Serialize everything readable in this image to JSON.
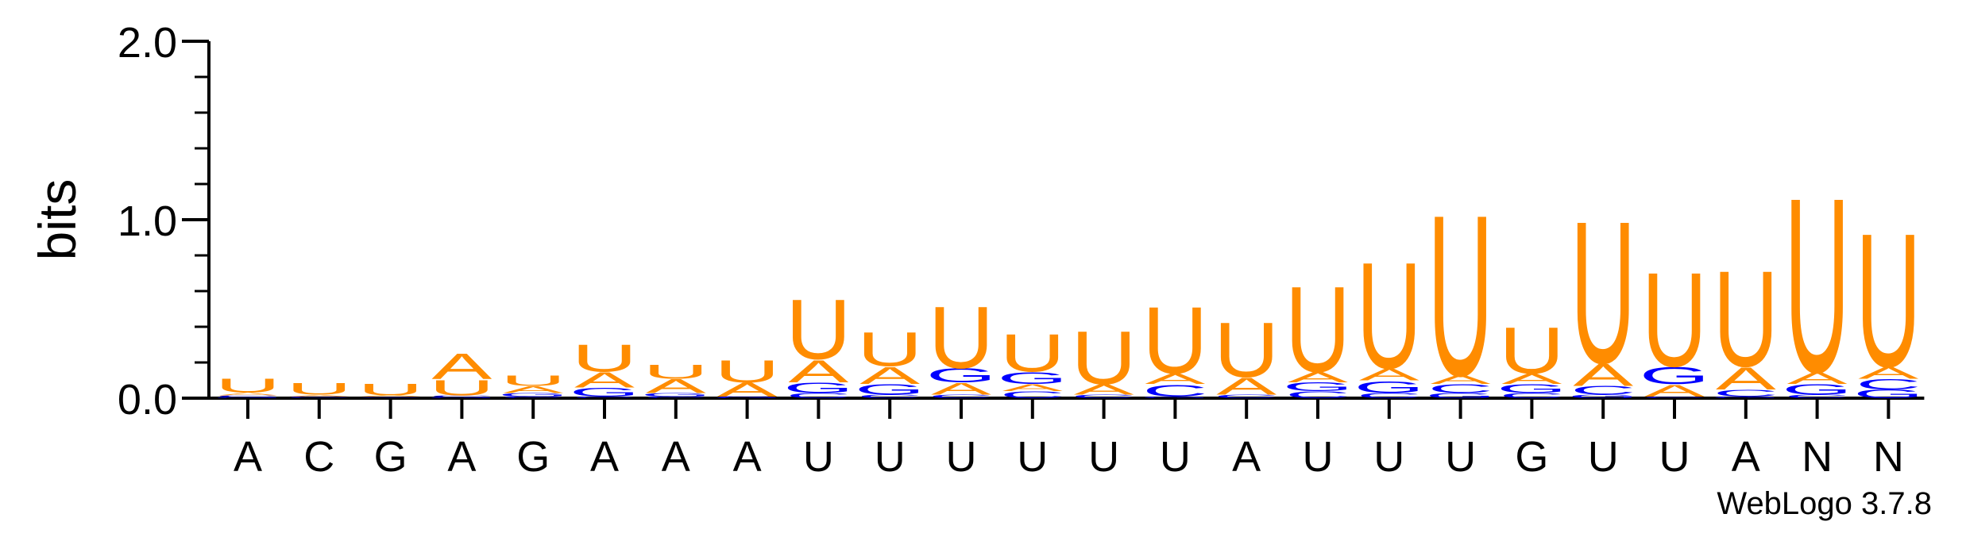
{
  "chart_data": {
    "type": "sequence-logo",
    "ylabel": "bits",
    "ylim": [
      0,
      2
    ],
    "yticks": [
      "0.0",
      "1.0",
      "2.0"
    ],
    "credit": "WebLogo 3.7.8",
    "colors": {
      "U": "#ff8c00",
      "A": "#ff8c00",
      "G": "#0000ff",
      "C": "#0000ff"
    },
    "positions": [
      {
        "label": "A",
        "stack": [
          {
            "l": "G",
            "h": 0.006
          },
          {
            "l": "C",
            "h": 0.01
          },
          {
            "l": "A",
            "h": 0.015
          },
          {
            "l": "U",
            "h": 0.08
          }
        ]
      },
      {
        "label": "C",
        "stack": [
          {
            "l": "G",
            "h": 0.004
          },
          {
            "l": "C",
            "h": 0.006
          },
          {
            "l": "A",
            "h": 0.01
          },
          {
            "l": "U",
            "h": 0.07
          }
        ]
      },
      {
        "label": "G",
        "stack": [
          {
            "l": "G",
            "h": 0.004
          },
          {
            "l": "C",
            "h": 0.004
          },
          {
            "l": "A",
            "h": 0.008
          },
          {
            "l": "U",
            "h": 0.07
          }
        ]
      },
      {
        "label": "A",
        "stack": [
          {
            "l": "G",
            "h": 0.006
          },
          {
            "l": "C",
            "h": 0.01
          },
          {
            "l": "U",
            "h": 0.09
          },
          {
            "l": "A",
            "h": 0.15
          }
        ]
      },
      {
        "label": "G",
        "stack": [
          {
            "l": "C",
            "h": 0.01
          },
          {
            "l": "G",
            "h": 0.02
          },
          {
            "l": "A",
            "h": 0.04
          },
          {
            "l": "U",
            "h": 0.06
          }
        ]
      },
      {
        "label": "A",
        "stack": [
          {
            "l": "C",
            "h": 0.01
          },
          {
            "l": "G",
            "h": 0.05
          },
          {
            "l": "A",
            "h": 0.09
          },
          {
            "l": "U",
            "h": 0.16
          }
        ]
      },
      {
        "label": "A",
        "stack": [
          {
            "l": "C",
            "h": 0.01
          },
          {
            "l": "G",
            "h": 0.02
          },
          {
            "l": "A",
            "h": 0.08
          },
          {
            "l": "U",
            "h": 0.08
          }
        ]
      },
      {
        "label": "A",
        "stack": [
          {
            "l": "G",
            "h": 0.005
          },
          {
            "l": "C",
            "h": 0.005
          },
          {
            "l": "A",
            "h": 0.08
          },
          {
            "l": "U",
            "h": 0.13
          }
        ]
      },
      {
        "label": "U",
        "stack": [
          {
            "l": "C",
            "h": 0.03
          },
          {
            "l": "G",
            "h": 0.06
          },
          {
            "l": "A",
            "h": 0.13
          },
          {
            "l": "U",
            "h": 0.35
          }
        ]
      },
      {
        "label": "U",
        "stack": [
          {
            "l": "C",
            "h": 0.02
          },
          {
            "l": "G",
            "h": 0.06
          },
          {
            "l": "A",
            "h": 0.1
          },
          {
            "l": "U",
            "h": 0.2
          }
        ]
      },
      {
        "label": "U",
        "stack": [
          {
            "l": "C",
            "h": 0.02
          },
          {
            "l": "A",
            "h": 0.07
          },
          {
            "l": "G",
            "h": 0.08
          },
          {
            "l": "U",
            "h": 0.36
          }
        ]
      },
      {
        "label": "U",
        "stack": [
          {
            "l": "C",
            "h": 0.04
          },
          {
            "l": "A",
            "h": 0.04
          },
          {
            "l": "G",
            "h": 0.07
          },
          {
            "l": "U",
            "h": 0.22
          }
        ]
      },
      {
        "label": "U",
        "stack": [
          {
            "l": "C",
            "h": 0.02
          },
          {
            "l": "A",
            "h": 0.06
          },
          {
            "l": "U",
            "h": 0.31
          }
        ]
      },
      {
        "label": "U",
        "stack": [
          {
            "l": "G",
            "h": 0.01
          },
          {
            "l": "C",
            "h": 0.07
          },
          {
            "l": "A",
            "h": 0.06
          },
          {
            "l": "U",
            "h": 0.39
          }
        ]
      },
      {
        "label": "A",
        "stack": [
          {
            "l": "C",
            "h": 0.02
          },
          {
            "l": "A",
            "h": 0.1
          },
          {
            "l": "U",
            "h": 0.32
          }
        ]
      },
      {
        "label": "U",
        "stack": [
          {
            "l": "C",
            "h": 0.04
          },
          {
            "l": "G",
            "h": 0.05
          },
          {
            "l": "A",
            "h": 0.06
          },
          {
            "l": "U",
            "h": 0.5
          }
        ]
      },
      {
        "label": "U",
        "stack": [
          {
            "l": "C",
            "h": 0.03
          },
          {
            "l": "G",
            "h": 0.07
          },
          {
            "l": "A",
            "h": 0.07
          },
          {
            "l": "U",
            "h": 0.62
          }
        ]
      },
      {
        "label": "U",
        "stack": [
          {
            "l": "G",
            "h": 0.03
          },
          {
            "l": "C",
            "h": 0.05
          },
          {
            "l": "A",
            "h": 0.05
          },
          {
            "l": "U",
            "h": 0.94
          }
        ]
      },
      {
        "label": "G",
        "stack": [
          {
            "l": "C",
            "h": 0.03
          },
          {
            "l": "G",
            "h": 0.05
          },
          {
            "l": "A",
            "h": 0.06
          },
          {
            "l": "U",
            "h": 0.27
          }
        ]
      },
      {
        "label": "U",
        "stack": [
          {
            "l": "G",
            "h": 0.02
          },
          {
            "l": "C",
            "h": 0.05
          },
          {
            "l": "A",
            "h": 0.13
          },
          {
            "l": "U",
            "h": 0.83
          }
        ]
      },
      {
        "label": "U",
        "stack": [
          {
            "l": "C",
            "h": 0.01
          },
          {
            "l": "A",
            "h": 0.07
          },
          {
            "l": "G",
            "h": 0.1
          },
          {
            "l": "U",
            "h": 0.55
          }
        ]
      },
      {
        "label": "A",
        "stack": [
          {
            "l": "G",
            "h": 0.01
          },
          {
            "l": "C",
            "h": 0.04
          },
          {
            "l": "A",
            "h": 0.13
          },
          {
            "l": "U",
            "h": 0.56
          }
        ]
      },
      {
        "label": "N",
        "stack": [
          {
            "l": "C",
            "h": 0.02
          },
          {
            "l": "G",
            "h": 0.06
          },
          {
            "l": "A",
            "h": 0.07
          },
          {
            "l": "U",
            "h": 1.02
          }
        ]
      },
      {
        "label": "N",
        "stack": [
          {
            "l": "G",
            "h": 0.05
          },
          {
            "l": "C",
            "h": 0.06
          },
          {
            "l": "A",
            "h": 0.07
          },
          {
            "l": "U",
            "h": 0.78
          }
        ]
      }
    ]
  }
}
